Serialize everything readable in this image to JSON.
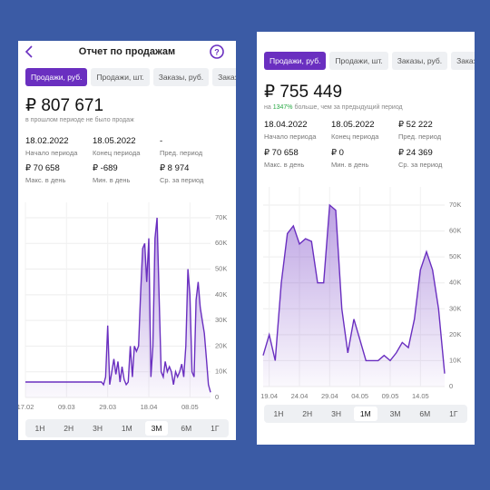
{
  "screens": [
    {
      "header_title": "Отчет по продажам",
      "tabs": [
        "Продажи, руб.",
        "Продажи, шт.",
        "Заказы, руб.",
        "Заказы, шт."
      ],
      "active_tab": 0,
      "total": "₽ 807 671",
      "note_parts": [
        {
          "text": "в прошлом периоде не было продаж"
        }
      ],
      "stats": [
        {
          "value": "18.02.2022",
          "label": "Начало периода"
        },
        {
          "value": "18.05.2022",
          "label": "Конец периода"
        },
        {
          "value": "-",
          "label": "Пред. период"
        },
        {
          "value": "₽ 70 658",
          "label": "Макс. в день"
        },
        {
          "value": "₽ -689",
          "label": "Мин. в день"
        },
        {
          "value": "₽ 8 974",
          "label": "Ср. за период"
        }
      ],
      "chart": {
        "type": "area",
        "color": "#6a2fc0",
        "grid": true,
        "categories": [
          "17.02",
          null,
          null,
          null,
          null,
          null,
          null,
          null,
          null,
          null,
          null,
          null,
          null,
          null,
          null,
          null,
          null,
          null,
          null,
          null,
          "09.03",
          null,
          null,
          null,
          null,
          null,
          null,
          null,
          null,
          null,
          null,
          null,
          null,
          null,
          null,
          null,
          null,
          null,
          null,
          null,
          "29.03",
          null,
          null,
          null,
          null,
          null,
          null,
          null,
          null,
          null,
          null,
          null,
          null,
          null,
          null,
          null,
          null,
          null,
          null,
          null,
          "18.04",
          null,
          null,
          null,
          null,
          null,
          null,
          null,
          null,
          null,
          null,
          null,
          null,
          null,
          null,
          null,
          null,
          null,
          null,
          null,
          "08.05",
          null,
          null,
          null,
          null,
          null,
          null,
          null,
          null,
          null,
          null
        ],
        "values": [
          6000,
          6000,
          6000,
          6000,
          6000,
          6000,
          6000,
          6000,
          6000,
          6000,
          6000,
          6000,
          6000,
          6000,
          6000,
          6000,
          6000,
          6000,
          6000,
          6000,
          6000,
          6000,
          6000,
          6000,
          6000,
          6000,
          6000,
          6000,
          6000,
          6000,
          6000,
          6000,
          6000,
          6000,
          6000,
          6000,
          6000,
          6000,
          5000,
          8000,
          28000,
          5000,
          10000,
          15000,
          9000,
          14000,
          6000,
          12000,
          7000,
          5000,
          6000,
          20000,
          8000,
          20000,
          18000,
          20000,
          40000,
          58000,
          60000,
          45000,
          62000,
          8000,
          20000,
          62000,
          70000,
          40000,
          10000,
          8000,
          14000,
          10000,
          12000,
          10000,
          5000,
          10000,
          8000,
          10000,
          13000,
          8000,
          20000,
          50000,
          40000,
          10000,
          8000,
          38000,
          45000,
          35000,
          30000,
          25000,
          15000,
          5000,
          2000
        ],
        "ylim": [
          0,
          76000
        ],
        "yticks": [
          0,
          {
            "value": 10000,
            "label": "10K"
          },
          {
            "value": 20000,
            "label": "20K"
          },
          {
            "value": 30000,
            "label": "30K"
          },
          {
            "value": 40000,
            "label": "40K"
          },
          {
            "value": 50000,
            "label": "50K"
          },
          {
            "value": 60000,
            "label": "60K"
          },
          {
            "value": 70000,
            "label": "70K"
          }
        ]
      },
      "periods": [
        "1Н",
        "2Н",
        "3Н",
        "1М",
        "3М",
        "6М",
        "1Г"
      ],
      "active_period": 4
    },
    {
      "tabs": [
        "Продажи, руб.",
        "Продажи, шт.",
        "Заказы, руб.",
        "Заказы, шт."
      ],
      "active_tab": 0,
      "total": "₽ 755 449",
      "note_parts": [
        {
          "text": "на "
        },
        {
          "text": "1347%",
          "highlight": true
        },
        {
          "text": " больше, чем за предыдущий период"
        }
      ],
      "stats": [
        {
          "value": "18.04.2022",
          "label": "Начало периода"
        },
        {
          "value": "18.05.2022",
          "label": "Конец периода"
        },
        {
          "value": "₽ 52 222",
          "label": "Пред. период"
        },
        {
          "value": "₽ 70 658",
          "label": "Макс. в день"
        },
        {
          "value": "₽ 0",
          "label": "Мин. в день"
        },
        {
          "value": "₽ 24 369",
          "label": "Ср. за период"
        }
      ],
      "chart": {
        "type": "area",
        "color": "#6a2fc0",
        "grid": true,
        "categories": [
          null,
          "19.04",
          null,
          null,
          null,
          null,
          "24.04",
          null,
          null,
          null,
          null,
          "29.04",
          null,
          null,
          null,
          null,
          "04.05",
          null,
          null,
          null,
          null,
          "09.05",
          null,
          null,
          null,
          null,
          "14.05",
          null,
          null,
          null,
          null
        ],
        "values": [
          12000,
          20000,
          10000,
          40000,
          59000,
          62000,
          55000,
          57000,
          56000,
          40000,
          40000,
          70000,
          68000,
          30000,
          13000,
          26000,
          18000,
          10000,
          10000,
          10000,
          12000,
          10000,
          13000,
          17000,
          15000,
          26000,
          45000,
          52000,
          45000,
          30000,
          5000
        ],
        "ylim": [
          0,
          77000
        ],
        "yticks": [
          0,
          {
            "value": 10000,
            "label": "10K"
          },
          {
            "value": 20000,
            "label": "20K"
          },
          {
            "value": 30000,
            "label": "30K"
          },
          {
            "value": 40000,
            "label": "40K"
          },
          {
            "value": 50000,
            "label": "50K"
          },
          {
            "value": 60000,
            "label": "60K"
          },
          {
            "value": 70000,
            "label": "70K"
          }
        ]
      },
      "periods": [
        "1Н",
        "2Н",
        "3Н",
        "1М",
        "3М",
        "6М",
        "1Г"
      ],
      "active_period": 3
    }
  ]
}
